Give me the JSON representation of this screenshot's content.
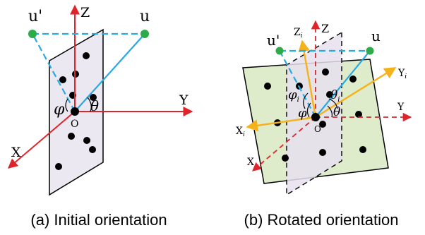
{
  "panel_a": {
    "caption": "(a) Initial orientation",
    "axes": {
      "z": "Z",
      "y": "Y",
      "x": "X"
    },
    "points": {
      "u": "u",
      "u_prime": "u'",
      "origin": "O"
    },
    "angles": {
      "phi": "φ",
      "theta": "θ"
    }
  },
  "panel_b": {
    "caption": "(b) Rotated orientation",
    "axes": {
      "z": "Z",
      "y": "Y",
      "x": "X"
    },
    "rotated_axes": {
      "z": "Z",
      "y": "Y",
      "x": "X",
      "subscript": "i"
    },
    "points": {
      "u": "u",
      "u_prime": "u'",
      "origin": "O"
    },
    "angles": {
      "phi": "φ",
      "theta": "θ",
      "subscript": "i"
    }
  },
  "colors": {
    "world_axes": "#e0242b",
    "rotated_axes": "#f5b21b",
    "vector_lines": "#29a9e0",
    "endpoint": "#2dab4a",
    "plane_a": "#ece8f1",
    "plane_b": "#deeccb",
    "dots": "#000000"
  }
}
